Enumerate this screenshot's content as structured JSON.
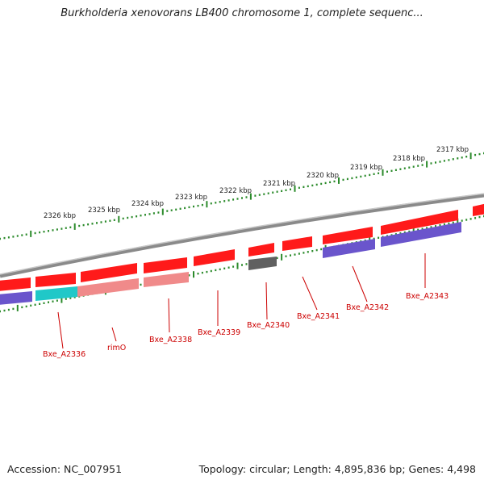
{
  "title": "Burkholderia xenovorans LB400 chromosome 1, complete sequenc...",
  "footer": {
    "accession": "Accession: NC_007951",
    "summary": "Topology: circular; Length: 4,895,836 bp; Genes: 4,498"
  },
  "colors": {
    "forward_gene": "#ff1a1a",
    "reverse_gene_light": "#f08a8a",
    "purple_track": "#6a55cc",
    "cyan_track": "#20c8c8",
    "gray_gene": "#606060",
    "backbone": "#8a8a8a",
    "tick": "#2a8a2a",
    "label": "#cc0000"
  },
  "ruler_labels": [
    "2326 kbp",
    "2325 kbp",
    "2324 kbp",
    "2323 kbp",
    "2322 kbp",
    "2321 kbp",
    "2320 kbp",
    "2319 kbp",
    "2318 kbp",
    "2317 kbp"
  ],
  "gene_labels": [
    "Bxe_A2336",
    "rimO",
    "Bxe_A2338",
    "Bxe_A2339",
    "Bxe_A2340",
    "Bxe_A2341",
    "Bxe_A2342",
    "Bxe_A2343"
  ]
}
